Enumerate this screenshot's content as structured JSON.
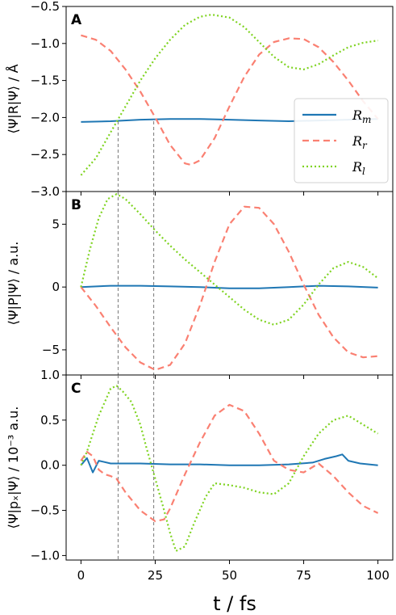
{
  "chart_data": [
    {
      "panel": "A",
      "type": "line",
      "ylabel": "⟨Ψ|R|Ψ⟩ / Å",
      "xlim": [
        -5,
        105
      ],
      "ylim": [
        -3.0,
        -0.5
      ],
      "yticks": [
        "-3.0",
        "-2.5",
        "-2.0",
        "-1.5",
        "-1.0",
        "-0.5"
      ],
      "legend": {
        "placement": "right",
        "entries": [
          "Rm",
          "Rr",
          "Rl"
        ]
      },
      "series": [
        {
          "name": "Rm",
          "color": "#1f77b4",
          "style": "solid",
          "x": [
            0,
            10,
            20,
            30,
            40,
            50,
            60,
            70,
            80,
            90,
            100
          ],
          "y": [
            -2.06,
            -2.05,
            -2.03,
            -2.02,
            -2.02,
            -2.03,
            -2.04,
            -2.05,
            -2.04,
            -2.03,
            -2.02
          ]
        },
        {
          "name": "Rr",
          "color": "#fa8072",
          "style": "dashed",
          "x": [
            0,
            5,
            10,
            15,
            20,
            25,
            30,
            35,
            37,
            40,
            45,
            50,
            55,
            60,
            65,
            70,
            75,
            80,
            85,
            90,
            95,
            100
          ],
          "y": [
            -0.89,
            -0.95,
            -1.1,
            -1.35,
            -1.65,
            -2.0,
            -2.37,
            -2.62,
            -2.64,
            -2.58,
            -2.28,
            -1.85,
            -1.45,
            -1.15,
            -0.98,
            -0.93,
            -0.94,
            -1.05,
            -1.25,
            -1.5,
            -1.78,
            -2.02
          ]
        },
        {
          "name": "Rl",
          "color": "#7fd321",
          "style": "dotted",
          "x": [
            0,
            5,
            10,
            15,
            20,
            25,
            30,
            35,
            40,
            44,
            50,
            55,
            60,
            65,
            70,
            75,
            80,
            85,
            90,
            95,
            100
          ],
          "y": [
            -2.78,
            -2.55,
            -2.2,
            -1.85,
            -1.5,
            -1.2,
            -0.95,
            -0.75,
            -0.64,
            -0.61,
            -0.65,
            -0.78,
            -0.98,
            -1.18,
            -1.32,
            -1.35,
            -1.28,
            -1.16,
            -1.05,
            -0.99,
            -0.96
          ]
        }
      ]
    },
    {
      "panel": "B",
      "type": "line",
      "ylabel": "⟨Ψ|P|Ψ⟩ / a.u.",
      "xlim": [
        -5,
        105
      ],
      "ylim": [
        -7.0,
        7.6
      ],
      "yticks": [
        "-5",
        "0",
        "5"
      ],
      "series": [
        {
          "name": "Rm",
          "color": "#1f77b4",
          "style": "solid",
          "x": [
            0,
            10,
            20,
            30,
            40,
            50,
            60,
            70,
            80,
            90,
            100
          ],
          "y": [
            0.0,
            0.1,
            0.1,
            0.05,
            0.0,
            -0.1,
            -0.1,
            0.0,
            0.1,
            0.05,
            -0.05
          ]
        },
        {
          "name": "Rr",
          "color": "#fa8072",
          "style": "dashed",
          "x": [
            0,
            5,
            10,
            15,
            20,
            25,
            30,
            35,
            40,
            45,
            50,
            55,
            60,
            65,
            70,
            75,
            80,
            85,
            90,
            95,
            100
          ],
          "y": [
            0.0,
            -1.5,
            -3.2,
            -4.8,
            -6.0,
            -6.6,
            -6.2,
            -4.5,
            -1.5,
            2.0,
            5.0,
            6.4,
            6.3,
            5.0,
            2.8,
            0.2,
            -2.2,
            -4.0,
            -5.2,
            -5.6,
            -5.5
          ]
        },
        {
          "name": "Rl",
          "color": "#7fd321",
          "style": "dotted",
          "x": [
            0,
            3,
            6,
            9,
            12,
            15,
            20,
            25,
            30,
            35,
            40,
            45,
            50,
            55,
            60,
            65,
            70,
            75,
            80,
            85,
            90,
            95,
            100
          ],
          "y": [
            0.0,
            3.0,
            5.5,
            7.0,
            7.4,
            7.0,
            5.8,
            4.5,
            3.3,
            2.2,
            1.2,
            0.2,
            -0.8,
            -1.8,
            -2.6,
            -3.0,
            -2.6,
            -1.4,
            0.2,
            1.5,
            2.0,
            1.6,
            0.7
          ]
        }
      ]
    },
    {
      "panel": "C",
      "type": "line",
      "ylabel": "⟨Ψ|pₓ|Ψ⟩ / 10⁻³ a.u.",
      "xlabel": "t / fs",
      "xlim": [
        -5,
        105
      ],
      "ylim": [
        -1.05,
        1.0
      ],
      "xticks": [
        "0",
        "25",
        "50",
        "75",
        "100"
      ],
      "yticks": [
        "-1.0",
        "-0.5",
        "0.0",
        "0.5",
        "1.0"
      ],
      "series": [
        {
          "name": "Rm",
          "color": "#1f77b4",
          "style": "solid",
          "x": [
            0,
            2,
            4,
            6,
            10,
            20,
            30,
            40,
            50,
            60,
            70,
            78,
            82,
            86,
            88,
            90,
            94,
            100
          ],
          "y": [
            0.0,
            0.08,
            -0.08,
            0.05,
            0.02,
            0.02,
            0.01,
            0.01,
            0.0,
            0.0,
            0.01,
            0.03,
            0.07,
            0.1,
            0.12,
            0.05,
            0.02,
            0.0
          ]
        },
        {
          "name": "Rr",
          "color": "#fa8072",
          "style": "dashed",
          "x": [
            0,
            2,
            4,
            6,
            8,
            10,
            12,
            15,
            20,
            25,
            28,
            30,
            35,
            40,
            45,
            50,
            55,
            60,
            65,
            70,
            75,
            80,
            85,
            90,
            95,
            100
          ],
          "y": [
            0.05,
            0.15,
            0.1,
            -0.05,
            -0.1,
            -0.12,
            -0.15,
            -0.3,
            -0.5,
            -0.62,
            -0.6,
            -0.48,
            -0.1,
            0.25,
            0.55,
            0.67,
            0.6,
            0.35,
            0.05,
            -0.05,
            -0.08,
            0.02,
            -0.12,
            -0.3,
            -0.45,
            -0.53
          ]
        },
        {
          "name": "Rl",
          "color": "#7fd321",
          "style": "dotted",
          "x": [
            0,
            2,
            4,
            6,
            8,
            10,
            12,
            14,
            17,
            20,
            22,
            25,
            28,
            30,
            32,
            35,
            38,
            42,
            45,
            50,
            55,
            60,
            65,
            70,
            75,
            80,
            85,
            90,
            95,
            100
          ],
          "y": [
            0.0,
            0.15,
            0.35,
            0.55,
            0.7,
            0.85,
            0.88,
            0.82,
            0.7,
            0.45,
            0.2,
            -0.15,
            -0.5,
            -0.75,
            -0.95,
            -0.9,
            -0.65,
            -0.35,
            -0.2,
            -0.22,
            -0.25,
            -0.3,
            -0.32,
            -0.2,
            0.1,
            0.35,
            0.5,
            0.55,
            0.45,
            0.35
          ]
        }
      ]
    }
  ],
  "guide_lines_x": [
    12.5,
    24.5
  ]
}
